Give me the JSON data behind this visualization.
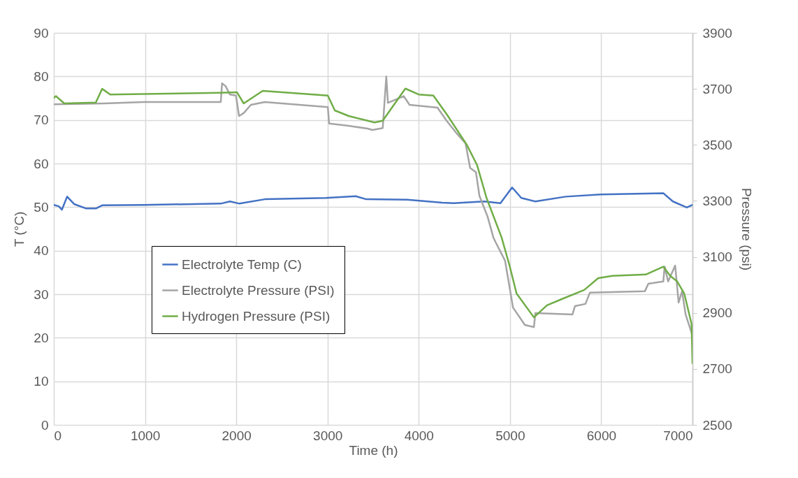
{
  "chart_data": {
    "type": "line",
    "xlabel": "Time (h)",
    "ylabel": "T (°C)",
    "y2label": "Pressure (psi)",
    "xlim": [
      0,
      7000
    ],
    "xticks": [
      0,
      1000,
      2000,
      3000,
      4000,
      5000,
      6000,
      7000
    ],
    "ylim": [
      0,
      90
    ],
    "yticks": [
      0,
      10,
      20,
      30,
      40,
      50,
      60,
      70,
      80,
      90
    ],
    "y2lim": [
      2500,
      3900
    ],
    "y2ticks": [
      2500,
      2700,
      2900,
      3100,
      3300,
      3500,
      3700,
      3900
    ],
    "grid": true,
    "legend": "left",
    "marker": "none",
    "line_style": "solid",
    "series": [
      {
        "name": "Electrolyte Temp (C)",
        "color": "#4472c4",
        "x": [
          0,
          54,
          89,
          146,
          222,
          350,
          465,
          529,
          988,
          1830,
          1930,
          2035,
          2313,
          2980,
          3309,
          3424,
          3874,
          4257,
          4382,
          4716,
          4895,
          5023,
          5124,
          5278,
          5610,
          5993,
          6680,
          6785,
          6938,
          7000
        ],
        "values": [
          50.5,
          50.2,
          49.4,
          52.4,
          50.7,
          49.7,
          49.7,
          50.4,
          50.5,
          50.8,
          51.3,
          50.8,
          51.8,
          52.1,
          52.5,
          51.8,
          51.7,
          51.0,
          50.9,
          51.3,
          50.9,
          54.5,
          52.1,
          51.3,
          52.4,
          52.9,
          53.2,
          51.3,
          49.9,
          50.5
        ]
      },
      {
        "name": "Electrolyte Pressure (PSI)",
        "color": "#a5a5a5",
        "axis": "y2",
        "x": [
          0,
          552,
          988,
          1830,
          1844,
          1882,
          1930,
          1997,
          2030,
          2083,
          2160,
          2313,
          3003,
          3018,
          3232,
          3440,
          3491,
          3605,
          3644,
          3662,
          3835,
          3899,
          4205,
          4305,
          4410,
          4512,
          4563,
          4627,
          4665,
          4754,
          4818,
          4843,
          4946,
          5033,
          5163,
          5262,
          5278,
          5684,
          5712,
          5827,
          5875,
          6478,
          6516,
          6680,
          6695,
          6733,
          6810,
          6848,
          6886,
          6925,
          7000
        ],
        "values": [
          3645,
          3648,
          3653,
          3653,
          3720,
          3710,
          3680,
          3676,
          3603,
          3614,
          3643,
          3653,
          3635,
          3576,
          3568,
          3558,
          3553,
          3560,
          3744,
          3650,
          3674,
          3643,
          3633,
          3586,
          3543,
          3506,
          3418,
          3402,
          3318,
          3244,
          3169,
          3152,
          3086,
          2919,
          2857,
          2849,
          2899,
          2894,
          2924,
          2932,
          2972,
          2977,
          3004,
          3012,
          3065,
          3012,
          3069,
          2937,
          2977,
          2894,
          2819
        ]
      },
      {
        "name": "Hydrogen Pressure (PSI)",
        "color": "#70ad47",
        "axis": "y2",
        "x": [
          0,
          23,
          115,
          460,
          530,
          618,
          1830,
          2007,
          2081,
          2290,
          3003,
          3080,
          3232,
          3440,
          3516,
          3605,
          3853,
          3999,
          4160,
          4305,
          4525,
          4640,
          4742,
          4908,
          4995,
          5072,
          5262,
          5405,
          5558,
          5814,
          5967,
          6120,
          6488,
          6680,
          6756,
          6833,
          6910,
          6990,
          7000
        ],
        "values": [
          3668,
          3674,
          3648,
          3651,
          3700,
          3680,
          3686,
          3688,
          3648,
          3693,
          3676,
          3623,
          3603,
          3586,
          3580,
          3586,
          3701,
          3680,
          3676,
          3610,
          3501,
          3427,
          3311,
          3169,
          3069,
          2969,
          2884,
          2927,
          2948,
          2982,
          3024,
          3032,
          3037,
          3065,
          3032,
          3012,
          2969,
          2860,
          2720
        ]
      }
    ]
  }
}
